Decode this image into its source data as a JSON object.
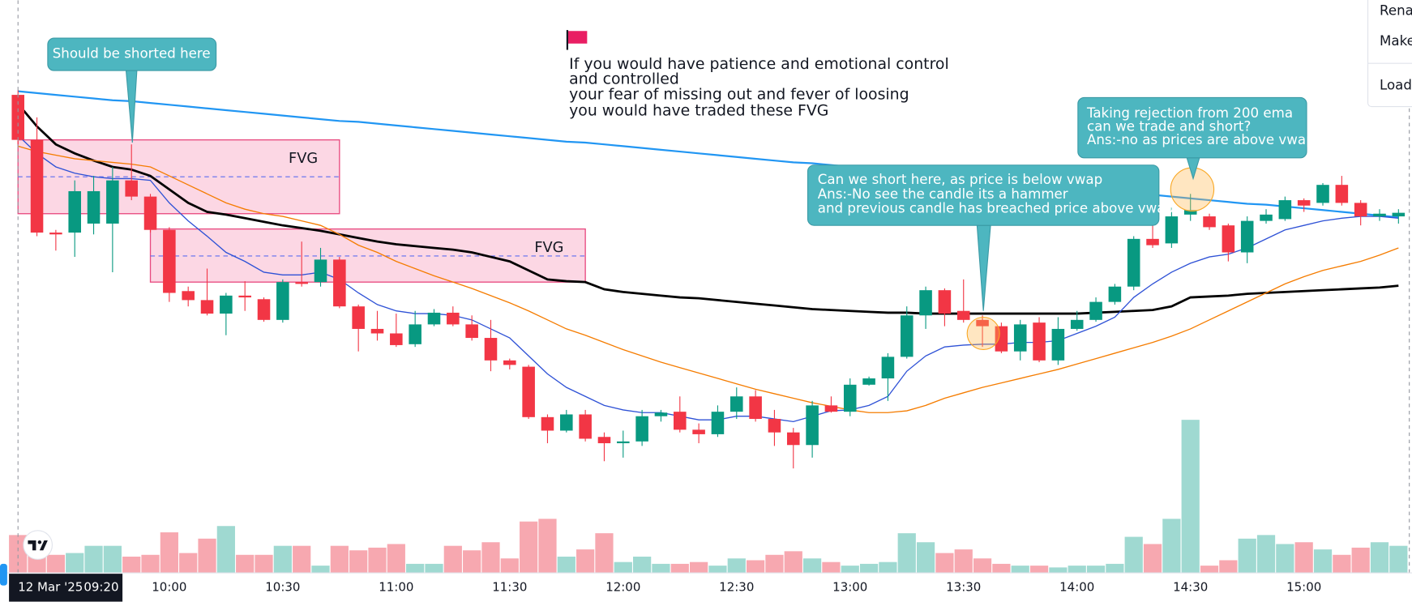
{
  "chart_data": {
    "type": "candlestick",
    "categories": [
      "09:20",
      null,
      null,
      null,
      null,
      null,
      null,
      null,
      "10:00",
      null,
      null,
      null,
      null,
      null,
      "10:30",
      null,
      null,
      null,
      null,
      null,
      "11:00",
      null,
      null,
      null,
      null,
      null,
      "11:30",
      null,
      null,
      null,
      null,
      null,
      "12:00",
      null,
      null,
      null,
      null,
      null,
      "12:30",
      null,
      null,
      null,
      null,
      null,
      "13:00",
      null,
      null,
      null,
      null,
      null,
      "13:30",
      null,
      null,
      null,
      null,
      null,
      "14:00",
      null,
      null,
      null,
      null,
      null,
      "14:30",
      null,
      null,
      null,
      null,
      null,
      "15:00",
      null,
      null,
      null,
      null,
      null
    ],
    "date_label": "12 Mar '25",
    "open": [
      495,
      445,
      342,
      342,
      352,
      352,
      400,
      382,
      345,
      277,
      267,
      252,
      272,
      268,
      245,
      287,
      287,
      312,
      260,
      235,
      230,
      218,
      240,
      253,
      240,
      225,
      200,
      193,
      137,
      122,
      140,
      115,
      108,
      110,
      138,
      143,
      123,
      118,
      143,
      160,
      135,
      120,
      106,
      150,
      143,
      173,
      180,
      204,
      250,
      278,
      255,
      245,
      238,
      210,
      242,
      200,
      235,
      245,
      265,
      282,
      335,
      330,
      362,
      360,
      350,
      320,
      355,
      357,
      378,
      375,
      395,
      375,
      360,
      360
    ],
    "high": [
      500,
      470,
      345,
      400,
      405,
      415,
      440,
      385,
      348,
      282,
      302,
      275,
      288,
      270,
      290,
      332,
      325,
      315,
      262,
      255,
      252,
      255,
      257,
      260,
      250,
      245,
      202,
      195,
      140,
      145,
      145,
      120,
      122,
      145,
      145,
      160,
      130,
      150,
      170,
      167,
      145,
      125,
      155,
      160,
      180,
      182,
      208,
      260,
      282,
      280,
      290,
      250,
      242,
      245,
      248,
      248,
      255,
      270,
      285,
      338,
      352,
      370,
      385,
      363,
      352,
      360,
      368,
      382,
      380,
      397,
      405,
      378,
      368,
      368
    ],
    "low": [
      440,
      338,
      322,
      315,
      340,
      298,
      378,
      342,
      265,
      260,
      250,
      228,
      255,
      243,
      242,
      282,
      282,
      258,
      210,
      222,
      215,
      215,
      238,
      238,
      222,
      188,
      190,
      135,
      108,
      120,
      110,
      88,
      92,
      105,
      132,
      120,
      108,
      115,
      135,
      132,
      105,
      80,
      92,
      142,
      138,
      172,
      155,
      202,
      235,
      238,
      242,
      215,
      208,
      200,
      198,
      195,
      233,
      243,
      262,
      278,
      325,
      325,
      355,
      345,
      310,
      308,
      352,
      355,
      365,
      372,
      372,
      350,
      355,
      352
    ],
    "close": [
      445,
      342,
      340,
      388,
      388,
      400,
      382,
      345,
      275,
      267,
      252,
      272,
      270,
      245,
      287,
      285,
      312,
      260,
      235,
      230,
      217,
      240,
      253,
      240,
      225,
      200,
      195,
      137,
      122,
      140,
      113,
      108,
      110,
      138,
      142,
      123,
      118,
      143,
      160,
      135,
      120,
      106,
      150,
      143,
      173,
      180,
      204,
      250,
      278,
      252,
      245,
      238,
      210,
      240,
      200,
      235,
      245,
      265,
      282,
      335,
      328,
      360,
      367,
      348,
      320,
      355,
      362,
      378,
      372,
      395,
      375,
      360,
      363,
      364
    ],
    "ylim": [
      0,
      600
    ],
    "up_color": "#089981",
    "down_color": "#f23645",
    "volume": [
      42,
      28,
      20,
      22,
      30,
      30,
      18,
      20,
      45,
      22,
      38,
      52,
      20,
      20,
      30,
      30,
      8,
      30,
      25,
      28,
      32,
      10,
      10,
      30,
      25,
      34,
      16,
      57,
      60,
      18,
      26,
      44,
      12,
      18,
      10,
      10,
      12,
      8,
      16,
      14,
      20,
      24,
      16,
      12,
      8,
      10,
      12,
      44,
      34,
      22,
      26,
      16,
      10,
      8,
      8,
      6,
      8,
      8,
      10,
      40,
      32,
      60,
      170,
      8,
      14,
      38,
      42,
      32,
      34,
      26,
      20,
      28,
      34,
      30
    ],
    "volume_lim": [
      0,
      600
    ],
    "volume_up_color": "#9fd9d1",
    "volume_down_color": "#f7a8b0",
    "overlays": [
      {
        "color": "#2196f3",
        "line_width": 2,
        "values": [
          499,
          497,
          495,
          493,
          491,
          489,
          488,
          486,
          484,
          482,
          480,
          478,
          476,
          474,
          472,
          470,
          468,
          466,
          465,
          463,
          461,
          459,
          457,
          455,
          453,
          451,
          449,
          447,
          445,
          443,
          442,
          440,
          438,
          436,
          434,
          432,
          430,
          428,
          426,
          424,
          422,
          420,
          419,
          417,
          415,
          413,
          411,
          409,
          407,
          405,
          403,
          401,
          399,
          397,
          396,
          394,
          392,
          390,
          388,
          386,
          384,
          382,
          380,
          378,
          376,
          374,
          373,
          371,
          369,
          367,
          365,
          363,
          361,
          359
        ]
      },
      {
        "color": "#000000",
        "line_width": 2.5,
        "values": [
          485,
          460,
          440,
          430,
          422,
          415,
          412,
          405,
          390,
          375,
          365,
          362,
          358,
          354,
          350,
          347,
          344,
          340,
          336,
          332,
          329,
          327,
          325,
          323,
          320,
          315,
          310,
          300,
          290,
          288,
          287,
          279,
          276,
          274,
          272,
          270,
          269,
          267,
          265,
          263,
          261,
          259,
          257,
          256,
          255,
          254,
          253,
          253,
          252,
          252,
          252,
          252,
          252,
          252,
          252,
          252,
          252,
          253,
          254,
          255,
          256,
          260,
          270,
          271,
          272,
          274,
          275,
          276,
          277,
          278,
          279,
          280,
          281,
          283
        ]
      },
      {
        "color": "#f57c00",
        "line_width": 1.2,
        "values": [
          438,
          432,
          428,
          424,
          422,
          420,
          418,
          415,
          405,
          395,
          385,
          375,
          368,
          363,
          360,
          355,
          350,
          340,
          328,
          320,
          310,
          302,
          294,
          287,
          280,
          272,
          264,
          255,
          245,
          235,
          228,
          220,
          212,
          205,
          198,
          192,
          186,
          180,
          174,
          168,
          163,
          158,
          153,
          149,
          145,
          142,
          142,
          144,
          150,
          158,
          164,
          170,
          175,
          180,
          185,
          190,
          196,
          202,
          208,
          214,
          220,
          227,
          235,
          245,
          255,
          265,
          275,
          285,
          293,
          300,
          305,
          310,
          317,
          325
        ]
      },
      {
        "color": "#2f52d6",
        "line_width": 1.2,
        "values": [
          450,
          430,
          415,
          408,
          404,
          402,
          402,
          400,
          375,
          355,
          338,
          320,
          310,
          298,
          295,
          295,
          298,
          290,
          275,
          262,
          255,
          252,
          252,
          250,
          245,
          235,
          225,
          205,
          185,
          170,
          160,
          150,
          145,
          142,
          142,
          138,
          134,
          134,
          138,
          138,
          135,
          132,
          138,
          144,
          145,
          150,
          160,
          188,
          205,
          215,
          217,
          218,
          218,
          220,
          220,
          222,
          230,
          238,
          248,
          270,
          285,
          298,
          308,
          315,
          318,
          325,
          335,
          345,
          350,
          355,
          358,
          360,
          360,
          358
        ]
      }
    ],
    "zones": [
      {
        "label": "FVG",
        "top": 445,
        "bottom": 363,
        "mid": 404,
        "from": 0,
        "to": 17
      },
      {
        "label": "FVG",
        "top": 346,
        "bottom": 287,
        "mid": 316,
        "from": 7,
        "to": 30
      }
    ],
    "annotations": {
      "short_here": "Should be shorted here",
      "note": [
        "If you would have patience and emotional control",
        "and controlled",
        "your fear of missing out and fever of loosing",
        "you would have traded these FVG"
      ],
      "vwap_question": [
        "Can we short here, as price is below vwap",
        "Ans:-No see the candle its a hammer",
        "and previous candle has breached price above vwap"
      ],
      "ema_question": [
        "Taking rejection from 200 ema",
        "can we trade and short?",
        "Ans:-no as prices are above vwap"
      ]
    }
  },
  "menu": [
    "Rename",
    "Make",
    "Load"
  ]
}
